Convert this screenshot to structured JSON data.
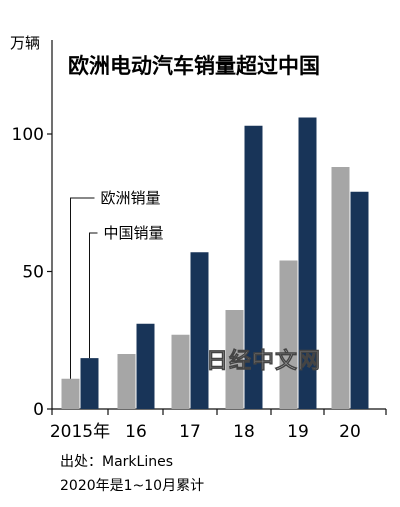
{
  "chart_data": {
    "type": "bar",
    "title": "欧洲电动汽车销量超过中国",
    "unit_label": "万辆",
    "categories": [
      "2015年",
      "16",
      "17",
      "18",
      "19",
      "20"
    ],
    "series": [
      {
        "name": "欧洲销量",
        "color": "#a6a6a6",
        "values": [
          11,
          20,
          27,
          36,
          54,
          88
        ]
      },
      {
        "name": "中国销量",
        "color": "#183458",
        "values": [
          18.5,
          31,
          57,
          103,
          106,
          79
        ]
      }
    ],
    "ylim": [
      0,
      100
    ],
    "yticks": [
      0,
      50,
      100
    ],
    "grid": false,
    "legend": "left, with leader lines to the 2015 bars"
  },
  "footer": {
    "source": "出处：MarkLines",
    "note": "2020年是1~10月累计"
  },
  "watermark": "日经中文网"
}
